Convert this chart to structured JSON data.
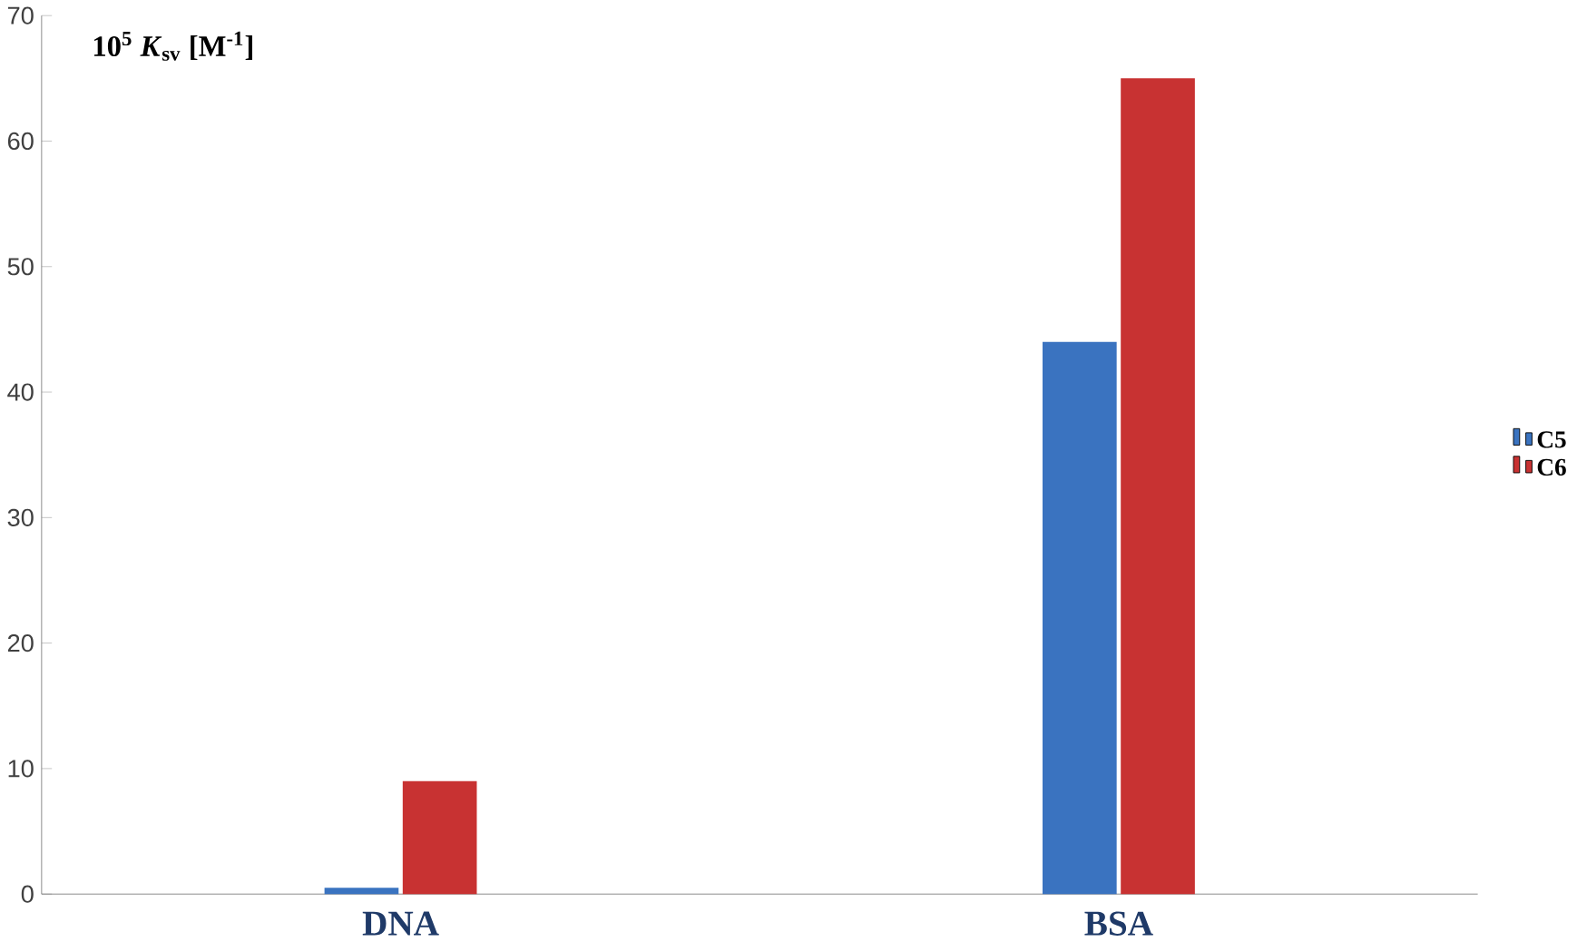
{
  "chart_data": {
    "type": "bar",
    "ylabel": "10$^{5}$ *K*$_{sv}$ [M$^{-1}$]",
    "categories": [
      "DNA",
      "BSA"
    ],
    "series": [
      {
        "name": "C5",
        "color": "#3a73c0",
        "values": [
          0.5,
          44
        ]
      },
      {
        "name": "C6",
        "color": "#c83232",
        "values": [
          9,
          65
        ]
      }
    ],
    "ylim": [
      0,
      70
    ],
    "yticks": [
      0,
      10,
      20,
      30,
      40,
      50,
      60,
      70
    ],
    "legend": "right",
    "grid": false
  }
}
